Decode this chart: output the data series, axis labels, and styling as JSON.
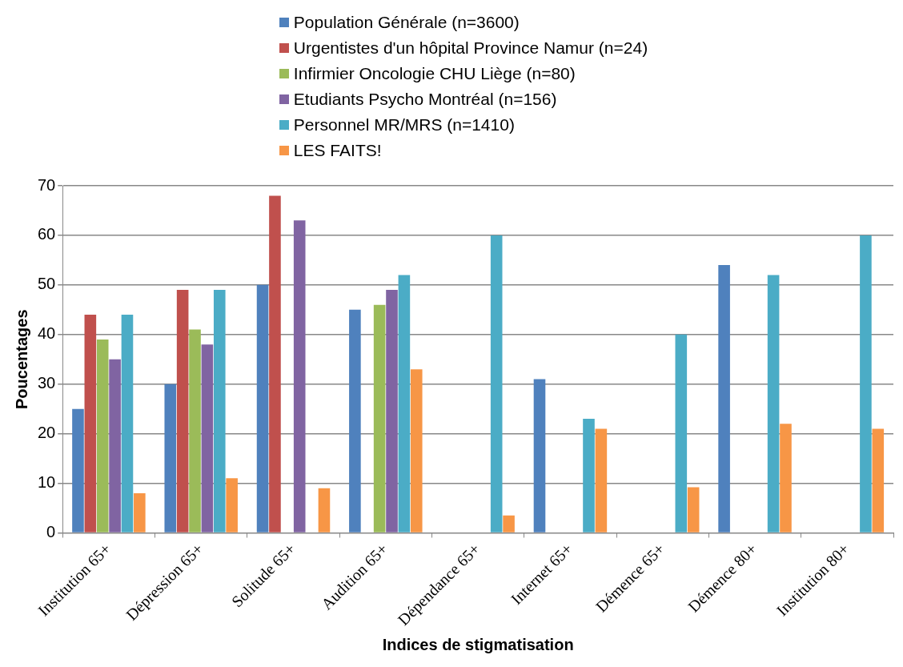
{
  "chart_data": {
    "type": "bar",
    "xlabel": "Indices de stigmatisation",
    "ylabel": "Poucentages",
    "categories": [
      "Institution 65+",
      "Dépression 65+",
      "Solitude 65+",
      "Audition 65+",
      "Dépendance 65+",
      "Internet 65+",
      "Démence 65+",
      "Démence 80+",
      "Institution 80+"
    ],
    "series": [
      {
        "name": "Population Générale (n=3600)",
        "color": "#4f81bd",
        "values": [
          25,
          30,
          50,
          45,
          null,
          31,
          null,
          54,
          null
        ]
      },
      {
        "name": "Urgentistes d'un hôpital Province Namur (n=24)",
        "color": "#c0504d",
        "values": [
          44,
          49,
          68,
          null,
          null,
          null,
          null,
          null,
          null
        ]
      },
      {
        "name": "Infirmier Oncologie CHU Liège (n=80)",
        "color": "#9bbb59",
        "values": [
          39,
          41,
          null,
          46,
          null,
          null,
          null,
          null,
          null
        ]
      },
      {
        "name": "Etudiants Psycho Montréal (n=156)",
        "color": "#8064a2",
        "values": [
          35,
          38,
          63,
          49,
          null,
          null,
          null,
          null,
          null
        ]
      },
      {
        "name": "Personnel MR/MRS (n=1410)",
        "color": "#4bacc6",
        "values": [
          44,
          49,
          null,
          52,
          60,
          23,
          40,
          52,
          60
        ]
      },
      {
        "name": "LES FAITS!",
        "color": "#f79646",
        "values": [
          8,
          11,
          9,
          33,
          3.5,
          21,
          9.2,
          22,
          21
        ]
      }
    ],
    "ylim": [
      0,
      70
    ],
    "yticks": [
      0,
      10,
      20,
      30,
      40,
      50,
      60,
      70
    ],
    "grid": "y",
    "legend": "top"
  }
}
